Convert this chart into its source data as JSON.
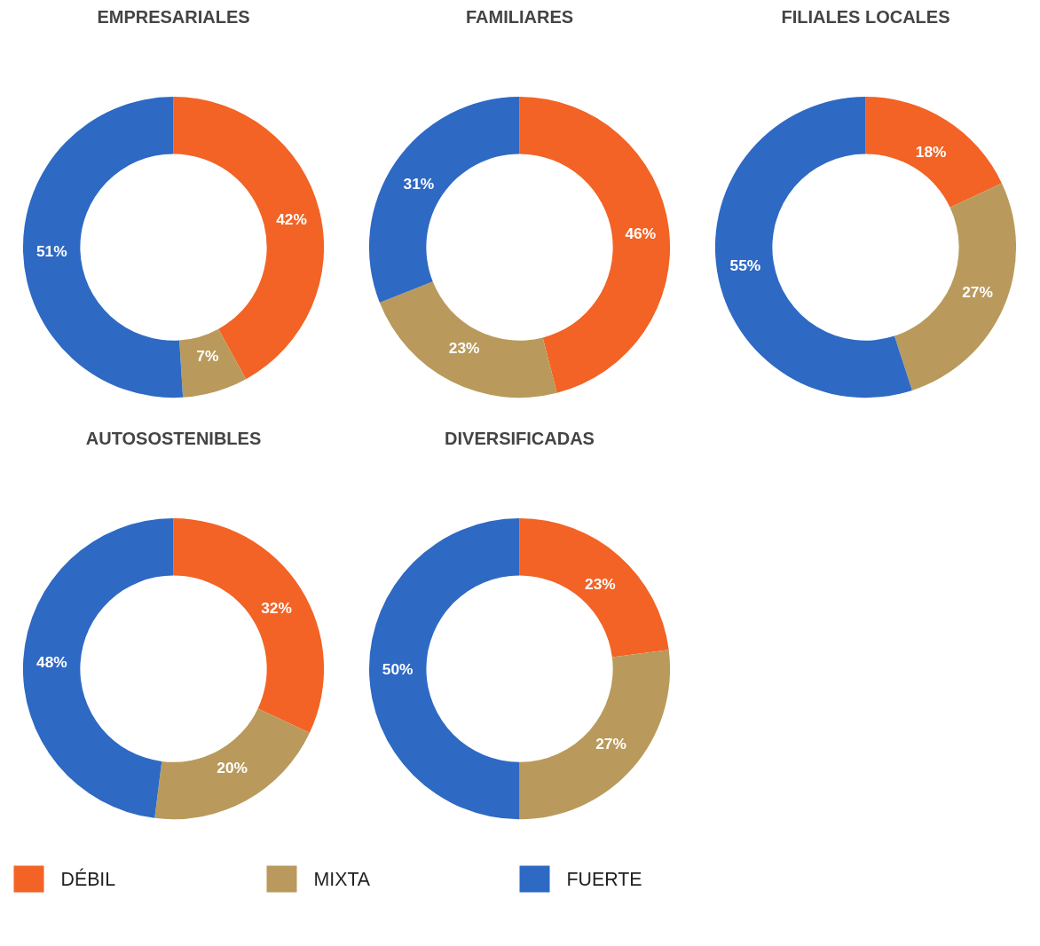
{
  "chart_data": [
    {
      "type": "donut",
      "title": "EMPRESARIALES",
      "categories": [
        "DÉBIL",
        "MIXTA",
        "FUERTE"
      ],
      "values": [
        42,
        7,
        51
      ],
      "value_labels": [
        "42%",
        "7%",
        "51%"
      ],
      "colors": [
        "#f26325",
        "#b99a5c",
        "#2e69c4"
      ],
      "legend": "bottom"
    },
    {
      "type": "donut",
      "title": "FAMILIARES",
      "categories": [
        null,
        null,
        null
      ],
      "values": [
        46,
        23,
        31
      ],
      "value_labels": [
        "46%",
        "23%",
        "31%"
      ],
      "colors": [
        "#f26325",
        "#b99a5c",
        "#2e69c4"
      ]
    },
    {
      "type": "donut",
      "title": "FILIALES LOCALES",
      "categories": [
        null,
        null,
        null
      ],
      "values": [
        18,
        27,
        55
      ],
      "value_labels": [
        "18%",
        "27%",
        "55%"
      ],
      "colors": [
        "#f26325",
        "#b99a5c",
        "#2e69c4"
      ]
    },
    {
      "type": "donut",
      "title": "AUTOSOSTENIBLES",
      "categories": [
        null,
        null,
        null
      ],
      "values": [
        32,
        20,
        48
      ],
      "value_labels": [
        "32%",
        "20%",
        "48%"
      ],
      "colors": [
        "#f26325",
        "#b99a5c",
        "#2e69c4"
      ]
    },
    {
      "type": "donut",
      "title": "DIVERSIFICADAS",
      "categories": [
        null,
        null,
        null
      ],
      "values": [
        23,
        27,
        50
      ],
      "value_labels": [
        "23%",
        "27%",
        "50%"
      ],
      "colors": [
        "#f26325",
        "#b99a5c",
        "#2e69c4"
      ]
    }
  ]
}
